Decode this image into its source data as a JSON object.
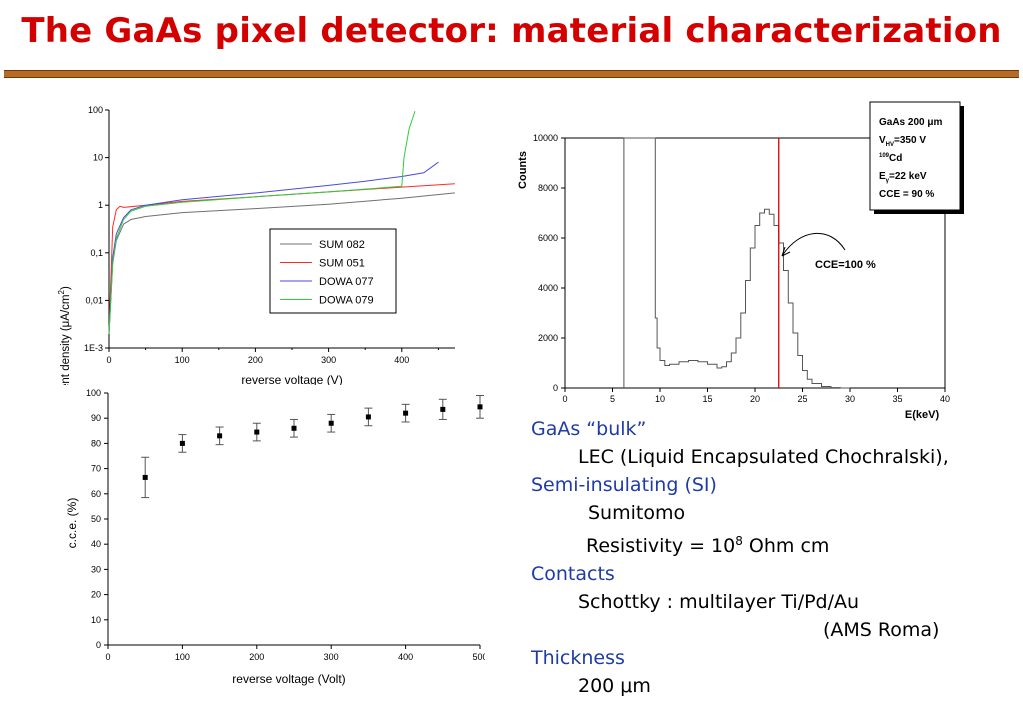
{
  "title": "The GaAs pixel detector: material characterization",
  "colors": {
    "title": "#d40000",
    "rule": "#b86a22",
    "notes_heading": "#1e3ba6",
    "spectrum_marker": "#d40000"
  },
  "chart_data": [
    {
      "id": "iv_curves",
      "type": "line",
      "xlabel": "reverse voltage (V)",
      "ylabel_parts": [
        "current density (",
        "μ",
        "A/cm",
        "2",
        ")"
      ],
      "yscale": "log",
      "xlim": [
        0,
        500
      ],
      "ylim": [
        0.001,
        100
      ],
      "xticks": [
        "0",
        "100",
        "200",
        "300",
        "400",
        "500"
      ],
      "xtick_values": [
        0,
        100,
        200,
        300,
        400,
        500
      ],
      "yticks": [
        "1E-3",
        "0,01",
        "0,1",
        "1",
        "10",
        "100"
      ],
      "ytick_values": [
        0.001,
        0.01,
        0.1,
        1,
        10,
        100
      ],
      "legend_position": "center-right",
      "series": [
        {
          "name": "SUM 082",
          "color": "#707070",
          "points": [
            [
              0,
              0.002
            ],
            [
              5,
              0.06
            ],
            [
              10,
              0.18
            ],
            [
              20,
              0.4
            ],
            [
              30,
              0.5
            ],
            [
              50,
              0.58
            ],
            [
              100,
              0.7
            ],
            [
              200,
              0.85
            ],
            [
              300,
              1.05
            ],
            [
              400,
              1.4
            ],
            [
              500,
              2.0
            ]
          ]
        },
        {
          "name": "SUM 051",
          "color": "#ff2a2a",
          "points": [
            [
              0,
              0.002
            ],
            [
              5,
              0.35
            ],
            [
              10,
              0.8
            ],
            [
              15,
              0.95
            ],
            [
              20,
              0.9
            ],
            [
              50,
              1.0
            ],
            [
              100,
              1.2
            ],
            [
              200,
              1.5
            ],
            [
              300,
              1.9
            ],
            [
              400,
              2.4
            ],
            [
              500,
              3.0
            ]
          ]
        },
        {
          "name": "DOWA 077",
          "color": "#4a4ae0",
          "points": [
            [
              0,
              0.002
            ],
            [
              5,
              0.08
            ],
            [
              10,
              0.25
            ],
            [
              20,
              0.55
            ],
            [
              30,
              0.8
            ],
            [
              50,
              1.0
            ],
            [
              100,
              1.3
            ],
            [
              200,
              1.8
            ],
            [
              300,
              2.6
            ],
            [
              350,
              3.2
            ],
            [
              400,
              4.0
            ],
            [
              430,
              4.8
            ],
            [
              450,
              8.0
            ]
          ]
        },
        {
          "name": "DOWA 079",
          "color": "#2ecc40",
          "points": [
            [
              0,
              0.002
            ],
            [
              5,
              0.06
            ],
            [
              10,
              0.2
            ],
            [
              20,
              0.5
            ],
            [
              30,
              0.75
            ],
            [
              50,
              0.95
            ],
            [
              100,
              1.15
            ],
            [
              200,
              1.5
            ],
            [
              300,
              1.9
            ],
            [
              400,
              2.5
            ],
            [
              403,
              10
            ],
            [
              410,
              40
            ],
            [
              418,
              95
            ]
          ]
        }
      ]
    },
    {
      "id": "cce_vs_voltage",
      "type": "scatter",
      "xlabel": "reverse voltage (Volt)",
      "ylabel": "c.c.e. (%)",
      "xlim": [
        0,
        500
      ],
      "ylim": [
        0,
        100
      ],
      "xticks": [
        "0",
        "100",
        "200",
        "300",
        "400",
        "500"
      ],
      "xtick_values": [
        0,
        100,
        200,
        300,
        400,
        500
      ],
      "yticks": [
        "0",
        "10",
        "20",
        "30",
        "40",
        "50",
        "60",
        "70",
        "80",
        "90",
        "100"
      ],
      "ytick_values": [
        0,
        10,
        20,
        30,
        40,
        50,
        60,
        70,
        80,
        90,
        100
      ],
      "grid": false,
      "points": [
        {
          "x": 50,
          "y": 66.5,
          "err": 8.0
        },
        {
          "x": 100,
          "y": 80,
          "err": 3.5
        },
        {
          "x": 150,
          "y": 83,
          "err": 3.5
        },
        {
          "x": 200,
          "y": 84.5,
          "err": 3.5
        },
        {
          "x": 250,
          "y": 86,
          "err": 3.5
        },
        {
          "x": 300,
          "y": 88,
          "err": 3.5
        },
        {
          "x": 350,
          "y": 90.5,
          "err": 3.5
        },
        {
          "x": 400,
          "y": 92,
          "err": 3.5
        },
        {
          "x": 450,
          "y": 93.5,
          "err": 4.0
        },
        {
          "x": 500,
          "y": 94.5,
          "err": 4.5
        }
      ]
    },
    {
      "id": "energy_spectrum",
      "type": "line",
      "xlabel": "E(keV)",
      "ylabel": "Counts",
      "xlim": [
        0,
        40
      ],
      "ylim": [
        0,
        10000
      ],
      "xticks": [
        "0",
        "5",
        "10",
        "15",
        "20",
        "25",
        "30",
        "35",
        "40"
      ],
      "xtick_values": [
        0,
        5,
        10,
        15,
        20,
        25,
        30,
        35,
        40
      ],
      "yticks": [
        "0",
        "2000",
        "4000",
        "6000",
        "8000",
        "10000"
      ],
      "ytick_values": [
        0,
        2000,
        4000,
        6000,
        8000,
        10000
      ],
      "marker_x": 22.5,
      "annotation": "CCE=100 %",
      "info_box": {
        "line1": "GaAs 200 μm",
        "line2_main": "V",
        "line2_sub": "HV",
        "line2_rest": "=350 V",
        "line3_sup": "109",
        "line3_main": "Cd",
        "line4_main": "E",
        "line4_sub": "γ",
        "line4_rest": "=22 keV",
        "line5": "CCE = 90 %"
      },
      "points": [
        [
          6.2,
          0
        ],
        [
          6.2,
          10000
        ],
        [
          9.5,
          10000
        ],
        [
          9.5,
          2800
        ],
        [
          9.7,
          1600
        ],
        [
          10,
          1100
        ],
        [
          10.5,
          900
        ],
        [
          11,
          950
        ],
        [
          12,
          1050
        ],
        [
          13,
          1100
        ],
        [
          14,
          1050
        ],
        [
          15,
          950
        ],
        [
          16,
          800
        ],
        [
          16.5,
          850
        ],
        [
          17,
          1050
        ],
        [
          17.5,
          1400
        ],
        [
          18,
          2000
        ],
        [
          18.5,
          3000
        ],
        [
          19,
          4300
        ],
        [
          19.5,
          5600
        ],
        [
          20,
          6500
        ],
        [
          20.5,
          7000
        ],
        [
          21,
          7150
        ],
        [
          21.5,
          6950
        ],
        [
          22,
          6500
        ],
        [
          22.5,
          5800
        ],
        [
          23,
          4700
        ],
        [
          23.5,
          3400
        ],
        [
          24,
          2200
        ],
        [
          24.5,
          1300
        ],
        [
          25,
          700
        ],
        [
          25.5,
          350
        ],
        [
          26,
          180
        ],
        [
          27,
          60
        ],
        [
          28,
          15
        ],
        [
          29,
          0
        ],
        [
          30,
          0
        ]
      ]
    }
  ],
  "notes": {
    "gaas_bulk": "GaAs “bulk”",
    "lec": "LEC (Liquid Encapsulated Chochralski),",
    "semi_insulating": "Semi-insulating (SI)",
    "sumitomo": "Sumitomo",
    "resistivity_pre": "Resistivity  = 10",
    "resistivity_exp": "8",
    "resistivity_post": " Ohm cm",
    "contacts": "Contacts",
    "schottky": "Schottky : multilayer Ti/Pd/Au",
    "ams": "(AMS Roma)",
    "thickness": "Thickness",
    "thickness_value": "200 μm"
  }
}
